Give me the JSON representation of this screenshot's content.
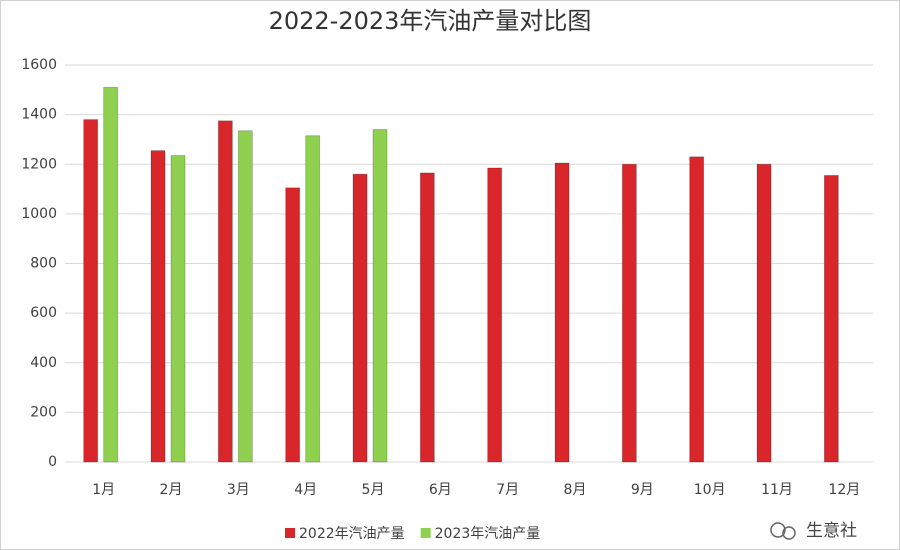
{
  "chart_data": {
    "type": "bar",
    "title": "2022-2023年汽油产量对比图",
    "categories": [
      "1月",
      "2月",
      "3月",
      "4月",
      "5月",
      "6月",
      "7月",
      "8月",
      "9月",
      "10月",
      "11月",
      "12月"
    ],
    "series": [
      {
        "name": "2022年汽油产量",
        "color": "#d9262b",
        "values": [
          1380,
          1255,
          1375,
          1105,
          1160,
          1165,
          1185,
          1205,
          1200,
          1230,
          1200,
          1155
        ]
      },
      {
        "name": "2023年汽油产量",
        "color": "#8fd14f",
        "values": [
          1510,
          1235,
          1335,
          1315,
          1340,
          null,
          null,
          null,
          null,
          null,
          null,
          null
        ]
      }
    ],
    "ylim": [
      0,
      1600
    ],
    "yticks": [
      0,
      200,
      400,
      600,
      800,
      1000,
      1200,
      1400,
      1600
    ],
    "grid": true,
    "legend": "bottom",
    "watermark": "生意社"
  }
}
